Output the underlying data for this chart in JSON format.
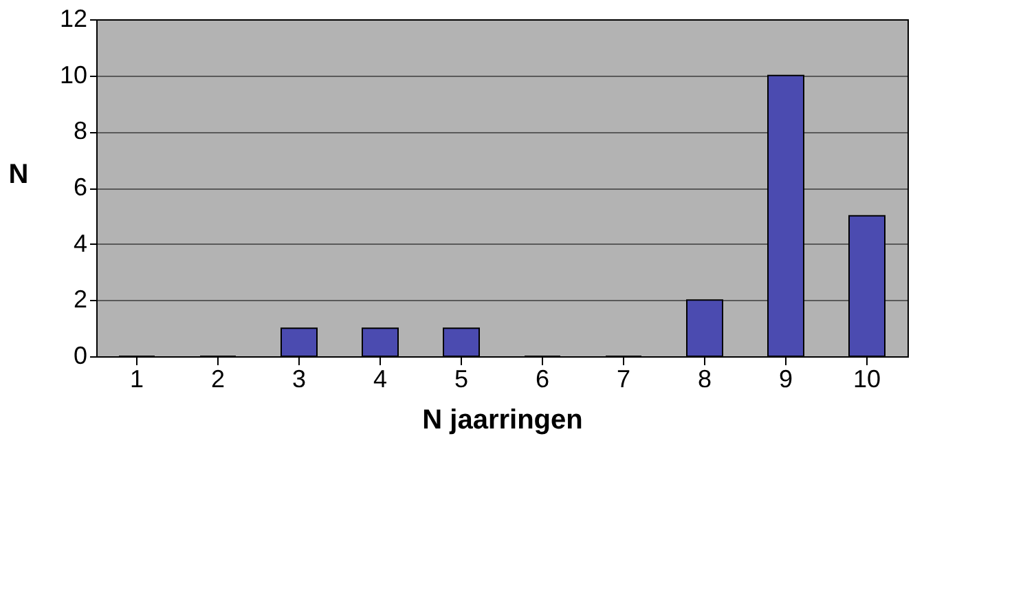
{
  "chart_data": {
    "type": "bar",
    "xlabel": "N jaarringen",
    "ylabel": "N",
    "categories": [
      "1",
      "2",
      "3",
      "4",
      "5",
      "6",
      "7",
      "8",
      "9",
      "10"
    ],
    "values": [
      0,
      0,
      1,
      1,
      1,
      0,
      0,
      2,
      10,
      5
    ],
    "color": "#4b4bb0",
    "ylim": [
      0,
      12
    ],
    "yticks": [
      0,
      2,
      4,
      6,
      8,
      10,
      12
    ],
    "grid": "y"
  }
}
